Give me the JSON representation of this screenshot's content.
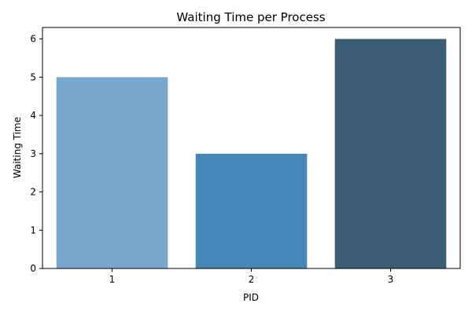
{
  "chart_data": {
    "type": "bar",
    "title": "Waiting Time per Process",
    "xlabel": "PID",
    "ylabel": "Waiting Time",
    "categories": [
      "1",
      "2",
      "3"
    ],
    "values": [
      5,
      3,
      6
    ],
    "ylim": [
      0,
      6.3
    ],
    "yticks": [
      "0",
      "1",
      "2",
      "3",
      "4",
      "5",
      "6"
    ],
    "bar_colors": [
      "#7aa8cc",
      "#4787b7",
      "#3b5d74"
    ],
    "grid": false,
    "legend": "none"
  }
}
